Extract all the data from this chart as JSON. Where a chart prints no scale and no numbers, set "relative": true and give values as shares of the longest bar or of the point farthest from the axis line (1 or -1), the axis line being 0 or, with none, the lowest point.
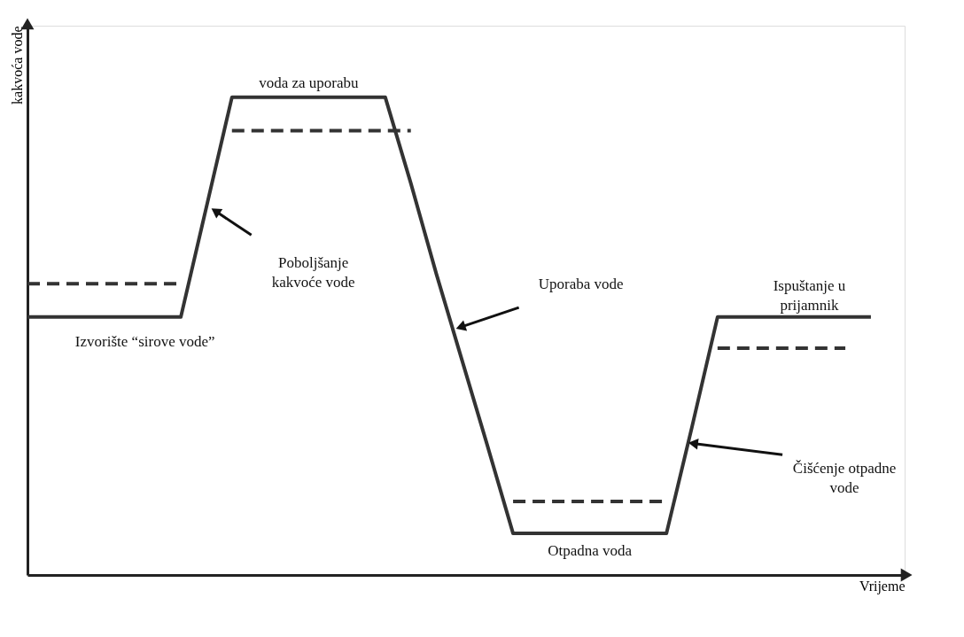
{
  "chart_data": {
    "type": "line",
    "relative": true,
    "xlabel": "Vrijeme",
    "ylabel": "kakvoća vode",
    "grid": false,
    "marker": "none",
    "categories": [
      null,
      null,
      null,
      null,
      null,
      null,
      null,
      null,
      null,
      null,
      null,
      null,
      null,
      null,
      null,
      null,
      null,
      null,
      null,
      null,
      null,
      null,
      null,
      null,
      null,
      null,
      null,
      null,
      null,
      null,
      null,
      null,
      null,
      null
    ],
    "series": [
      {
        "color": "#333333",
        "line_style": "solid",
        "values": [
          0.54,
          0.54,
          0.54,
          0.54,
          0.54,
          0.54,
          0.54,
          0.77,
          1,
          1,
          1,
          1,
          1,
          1,
          1,
          0.82,
          0.63,
          0.45,
          0.27,
          0.087,
          0.087,
          0.087,
          0.087,
          0.087,
          0.087,
          0.087,
          0.31,
          0.54,
          0.54,
          0.54,
          0.54,
          0.54,
          0.54,
          0.54
        ]
      },
      {
        "color": "#333333",
        "line_style": "dashed",
        "values": [
          0.61,
          0.61,
          0.61,
          0.61,
          0.61,
          0.61,
          0.61,
          null,
          0.93,
          0.93,
          0.93,
          0.93,
          0.93,
          0.93,
          0.93,
          0.93,
          null,
          null,
          null,
          0.154,
          0.154,
          0.154,
          0.154,
          0.154,
          0.154,
          0.154,
          null,
          0.475,
          0.475,
          0.475,
          0.475,
          0.475,
          0.475,
          null
        ]
      }
    ],
    "annotations": [
      "voda za uporabu",
      "Izvorište “sirove vode”",
      "Poboljšanje kakvoće vode",
      "Uporaba vode",
      "Ispuštanje u prijamnik",
      "Čišćenje otpadne vode",
      "Otpadna voda"
    ]
  }
}
